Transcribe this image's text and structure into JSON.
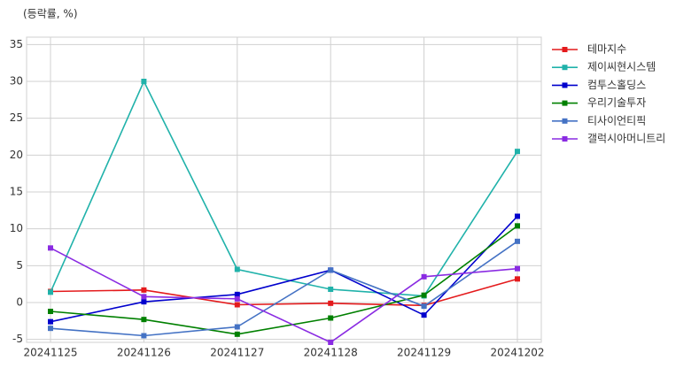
{
  "chart_data": {
    "type": "line",
    "subtitle": "(등락률, %)",
    "categories": [
      "20241125",
      "20241126",
      "20241127",
      "20241128",
      "20241129",
      "20241202"
    ],
    "series": [
      {
        "name": "테마지수",
        "color": "#e41a1c",
        "values": [
          1.5,
          1.7,
          -0.3,
          -0.1,
          -0.4,
          3.2
        ]
      },
      {
        "name": "제이씨현시스템",
        "color": "#20b2aa",
        "values": [
          1.4,
          30,
          4.5,
          1.8,
          0.9,
          20.5
        ]
      },
      {
        "name": "컴투스홀딩스",
        "color": "#0000cd",
        "values": [
          -2.6,
          0.1,
          1.1,
          4.4,
          -1.7,
          11.7
        ]
      },
      {
        "name": "우리기술투자",
        "color": "#008000",
        "values": [
          -1.2,
          -2.3,
          -4.3,
          -2.1,
          1.0,
          10.4
        ]
      },
      {
        "name": "티사이언티픽",
        "color": "#4472c4",
        "values": [
          -3.5,
          -4.5,
          -3.3,
          4.4,
          -0.5,
          8.3
        ]
      },
      {
        "name": "갤럭시아머니트리",
        "color": "#8a2be2",
        "values": [
          7.4,
          0.8,
          0.5,
          -5.4,
          3.5,
          4.6
        ]
      }
    ],
    "ylim": [
      -5.4,
      36
    ],
    "yticks": [
      -5,
      0,
      5,
      10,
      15,
      20,
      25,
      30,
      35
    ],
    "grid": true,
    "legend": "right"
  }
}
